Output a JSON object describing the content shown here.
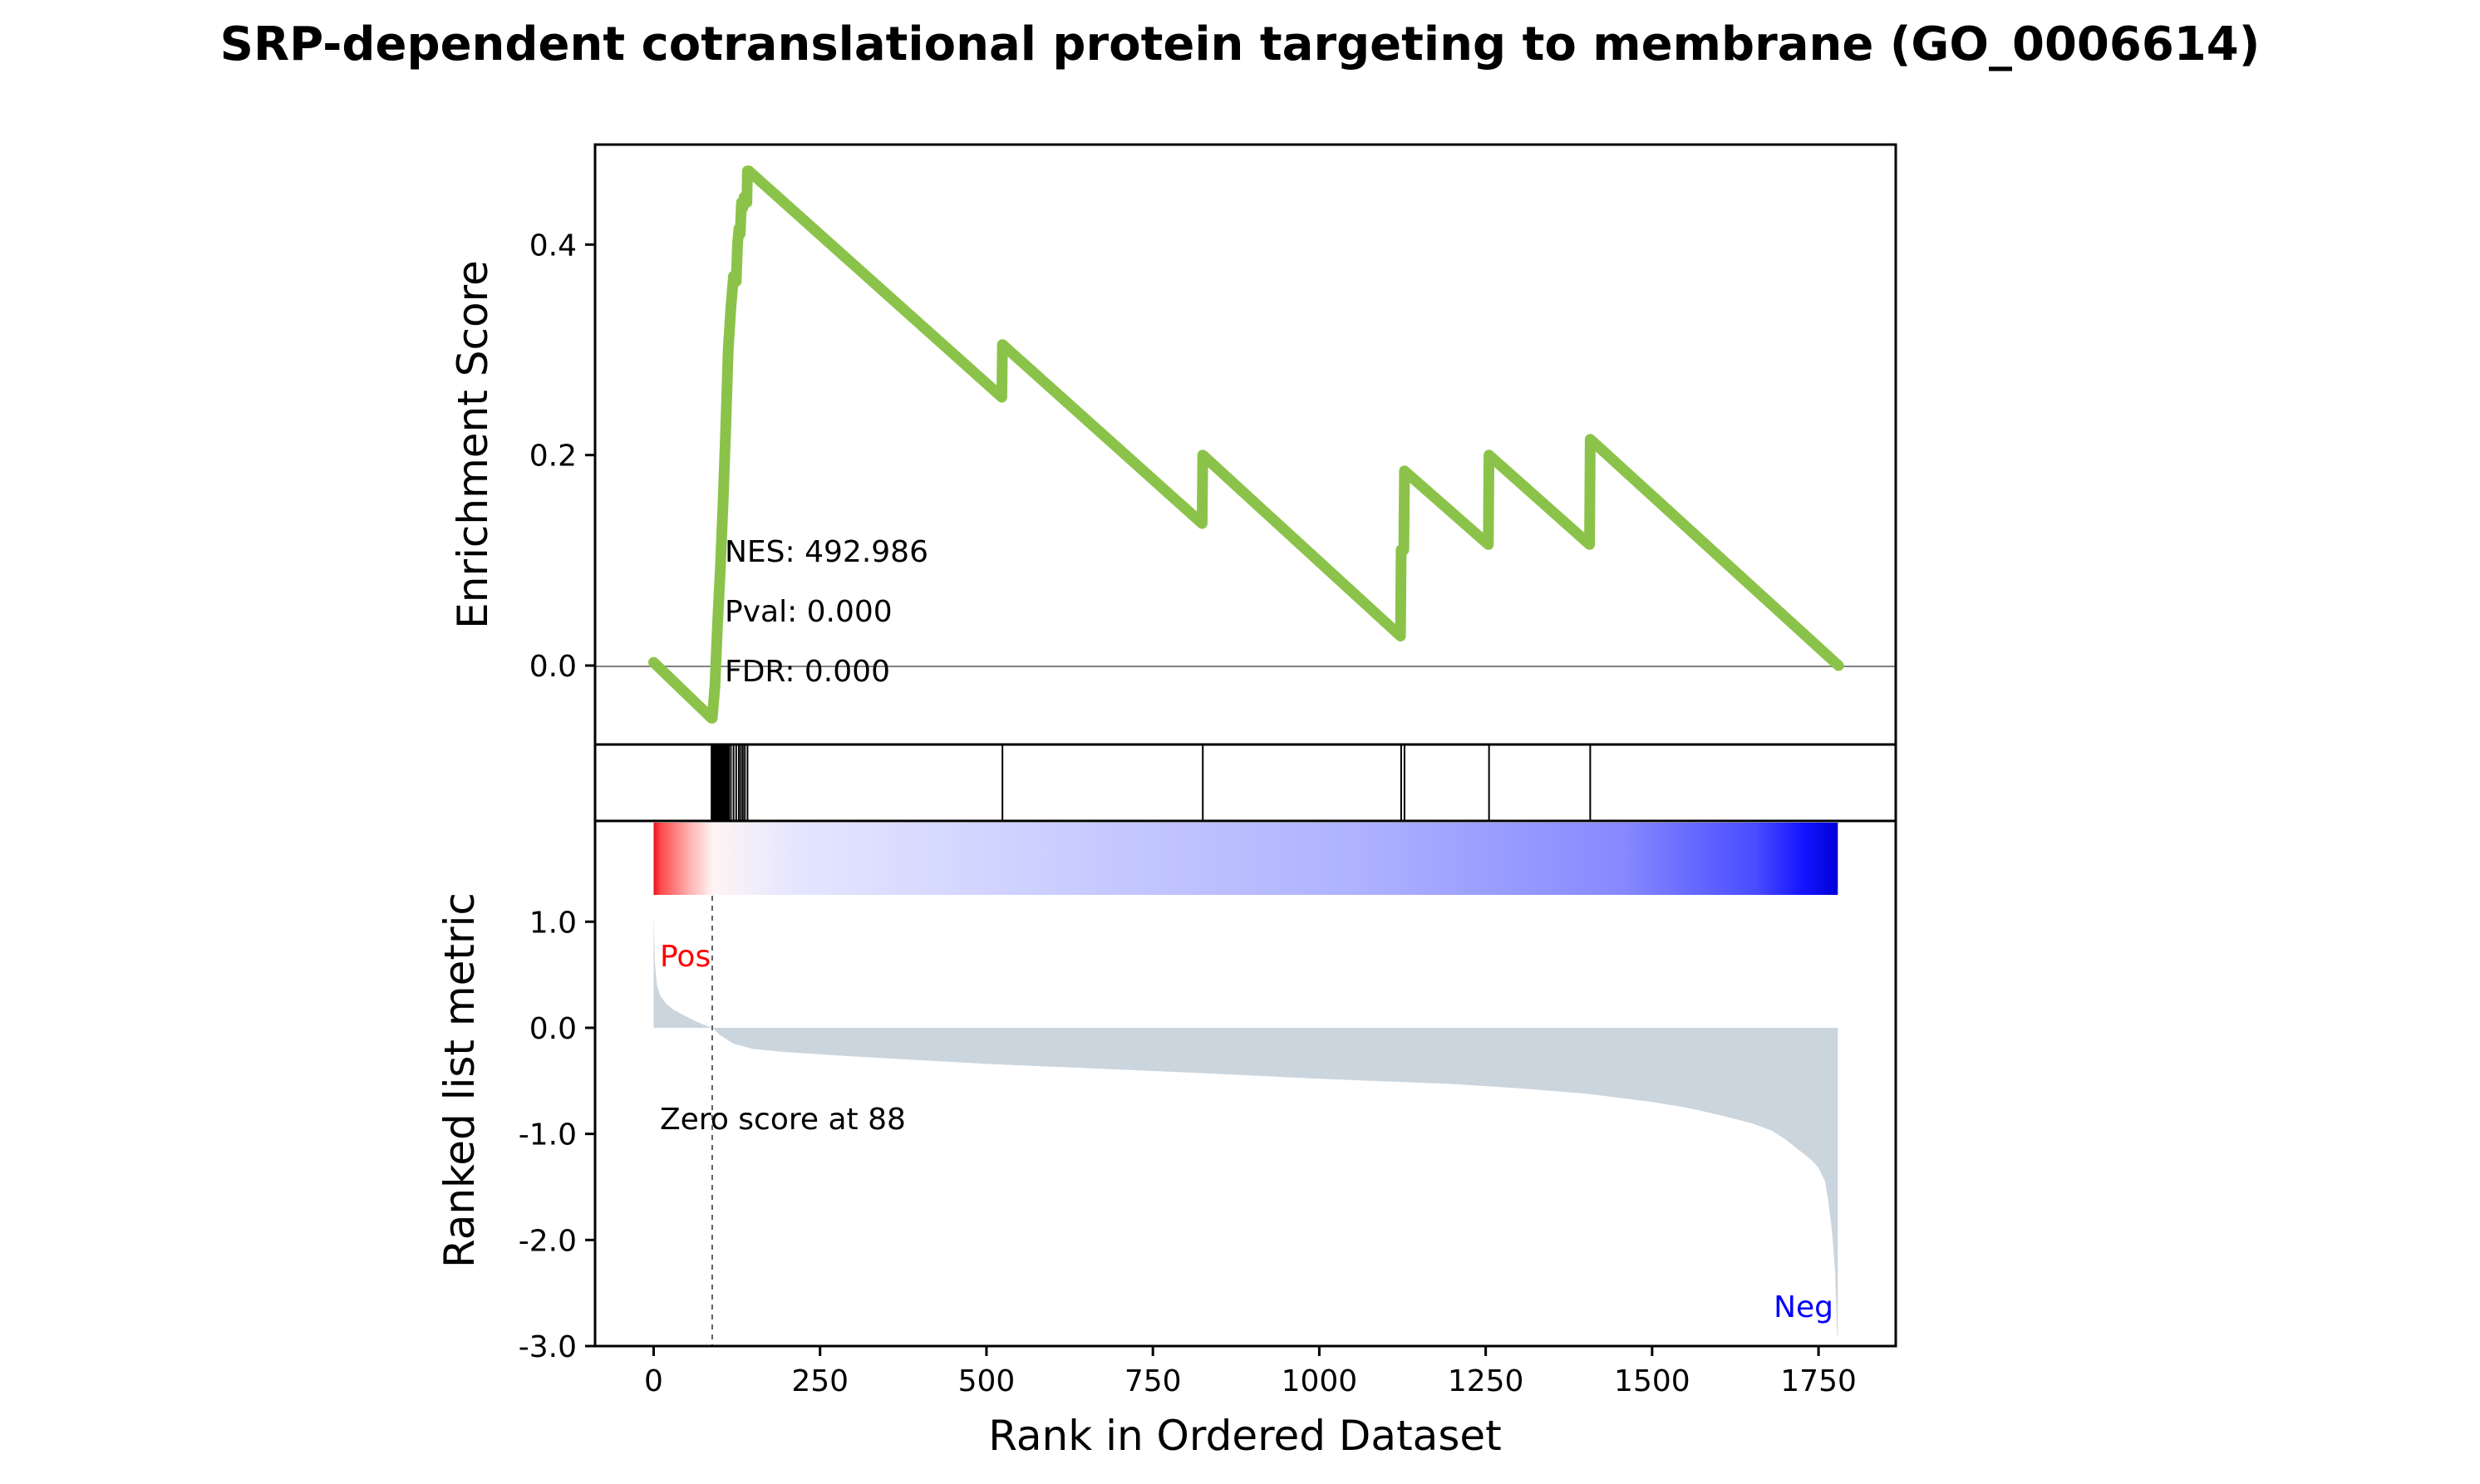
{
  "chart_data": {
    "type": "line",
    "title": "SRP-dependent cotranslational protein targeting to membrane (GO_0006614)",
    "xlabel": "Rank in Ordered Dataset",
    "xlim": [
      -88,
      1866
    ],
    "x_ticks": [
      0,
      250,
      500,
      750,
      1000,
      1250,
      1500,
      1750
    ],
    "x_tick_labels": [
      "0",
      "250",
      "500",
      "750",
      "1000",
      "1250",
      "1500",
      "1750"
    ],
    "enrichment": {
      "ylabel": "Enrichment Score",
      "ylim": [
        -0.075,
        0.495
      ],
      "y_ticks": [
        0.0,
        0.2,
        0.4
      ],
      "y_tick_labels": [
        "0.0",
        "0.2",
        "0.4"
      ],
      "line_color": "#8bc34a",
      "series": [
        {
          "x": [
            0,
            87,
            88,
            92,
            96,
            100,
            104,
            108,
            112,
            116,
            120,
            124,
            126,
            128,
            130,
            132,
            134,
            136,
            140,
            141,
            143,
            523,
            524,
            824,
            825,
            1122,
            1123,
            1127,
            1128,
            1254,
            1255,
            1406,
            1407,
            1780
          ],
          "y": [
            0.003,
            -0.05,
            -0.05,
            -0.02,
            0.04,
            0.09,
            0.15,
            0.22,
            0.3,
            0.34,
            0.37,
            0.365,
            0.4,
            0.415,
            0.41,
            0.44,
            0.435,
            0.445,
            0.44,
            0.47,
            0.47,
            0.255,
            0.305,
            0.135,
            0.2,
            0.028,
            0.11,
            0.11,
            0.185,
            0.115,
            0.2,
            0.115,
            0.215,
            0.0
          ]
        }
      ],
      "annotations": [
        "NES: 492.986",
        "Pval: 0.000",
        "FDR: 0.000"
      ]
    },
    "hits": [
      87,
      89,
      91,
      93,
      95,
      97,
      99,
      101,
      103,
      105,
      107,
      109,
      111,
      113,
      116,
      120,
      124,
      128,
      131,
      134,
      137,
      141,
      524,
      825,
      1123,
      1128,
      1255,
      1407
    ],
    "ranked_metric": {
      "ylabel": "Ranked list metric",
      "ylim": [
        -3.0,
        1.95
      ],
      "y_ticks": [
        1.0,
        0.0,
        -1.0,
        -2.0,
        -3.0
      ],
      "y_tick_labels": [
        "1.0",
        "0.0",
        "-1.0",
        "-2.0",
        "-3.0"
      ],
      "fill_color": "#cbd5de",
      "x": [
        0,
        2,
        5,
        10,
        20,
        30,
        45,
        60,
        75,
        88,
        100,
        120,
        150,
        200,
        300,
        500,
        800,
        1000,
        1200,
        1300,
        1400,
        1500,
        1550,
        1600,
        1650,
        1680,
        1700,
        1720,
        1740,
        1750,
        1760,
        1765,
        1770,
        1775,
        1778,
        1779
      ],
      "y": [
        1.05,
        0.6,
        0.4,
        0.3,
        0.22,
        0.17,
        0.12,
        0.07,
        0.03,
        0.0,
        -0.07,
        -0.15,
        -0.2,
        -0.23,
        -0.27,
        -0.34,
        -0.42,
        -0.48,
        -0.53,
        -0.57,
        -0.62,
        -0.7,
        -0.75,
        -0.82,
        -0.9,
        -0.97,
        -1.05,
        -1.15,
        -1.25,
        -1.32,
        -1.45,
        -1.65,
        -1.9,
        -2.3,
        -2.9,
        -2.9
      ],
      "pos_label": "Pos",
      "neg_label": "Neg",
      "pos_color": "#ff0000",
      "neg_color": "#0000ff",
      "zero_cross_rank": 88,
      "zero_label": "Zero score at 88"
    }
  }
}
